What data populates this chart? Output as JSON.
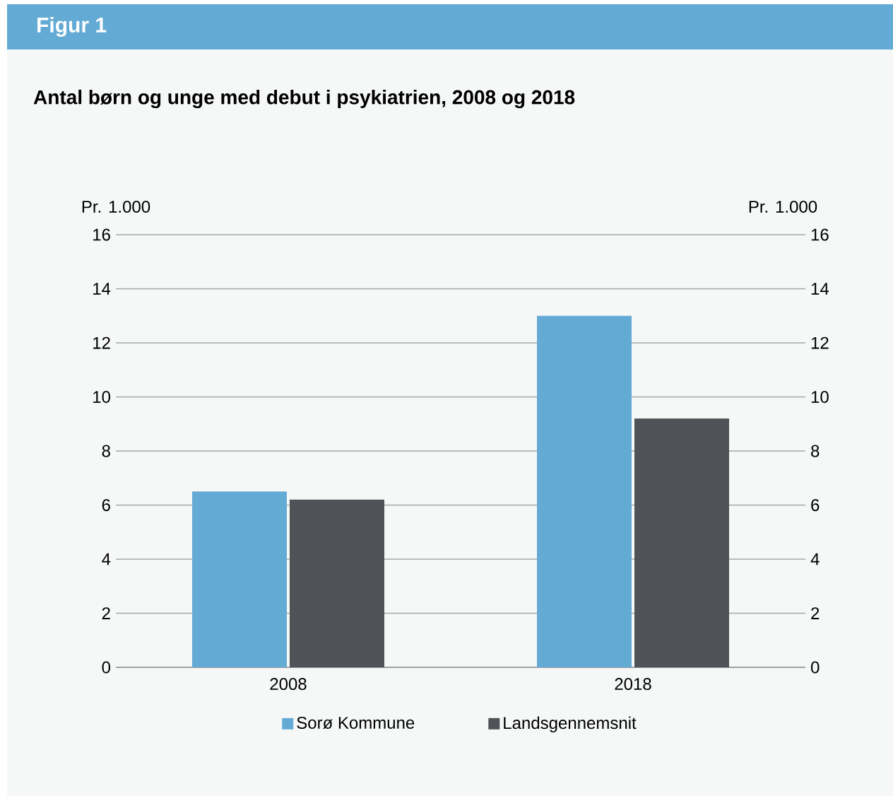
{
  "chart_data": {
    "type": "bar",
    "title": "Figur 1",
    "subtitle": "Antal børn og unge med debut i psykiatrien, 2008 og 2018",
    "ylabel": "Pr. 1.000",
    "y2label": "Pr. 1.000",
    "categories": [
      "2008",
      "2018"
    ],
    "series": [
      {
        "name": "Sorø Kommune",
        "color": "#63aad5",
        "values": [
          6.5,
          13.0
        ]
      },
      {
        "name": "Landsgennemsnit",
        "color": "#515257",
        "values": [
          6.2,
          9.2
        ]
      }
    ],
    "ylim": [
      0,
      16
    ],
    "yticks": [
      0,
      2,
      4,
      6,
      8,
      10,
      12,
      14,
      16
    ],
    "y2lim": [
      0,
      16
    ],
    "y2ticks": [
      0,
      2,
      4,
      6,
      8,
      10,
      12,
      14,
      16
    ],
    "grid": "y",
    "legend": "bottom"
  }
}
